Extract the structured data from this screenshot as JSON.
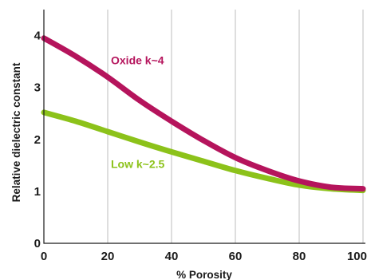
{
  "chart_data": {
    "type": "line",
    "xlabel": "% Porosity",
    "ylabel": "Relative dielectric constant",
    "xlim": [
      0,
      100
    ],
    "ylim": [
      0,
      4.5
    ],
    "xticks": [
      0,
      20,
      40,
      60,
      80,
      100
    ],
    "yticks": [
      0,
      1,
      2,
      3,
      4
    ],
    "grid": "vertical",
    "series": [
      {
        "name": "Oxide k~4",
        "color": "#b5145c",
        "x": [
          0,
          10,
          20,
          30,
          40,
          50,
          60,
          70,
          80,
          90,
          100
        ],
        "values": [
          3.95,
          3.6,
          3.2,
          2.75,
          2.35,
          1.98,
          1.65,
          1.4,
          1.2,
          1.08,
          1.05
        ]
      },
      {
        "name": "Low k~2.5",
        "color": "#8cc21a",
        "x": [
          0,
          10,
          20,
          30,
          40,
          50,
          60,
          70,
          80,
          90,
          100
        ],
        "values": [
          2.52,
          2.35,
          2.15,
          1.95,
          1.76,
          1.58,
          1.4,
          1.25,
          1.12,
          1.05,
          1.02
        ]
      }
    ],
    "annotations": [
      {
        "text": "Oxide k~4",
        "x": 21,
        "y": 3.45,
        "color": "#b5145c"
      },
      {
        "text": "Low k~2.5",
        "x": 21,
        "y": 1.45,
        "color": "#8cc21a"
      }
    ]
  }
}
